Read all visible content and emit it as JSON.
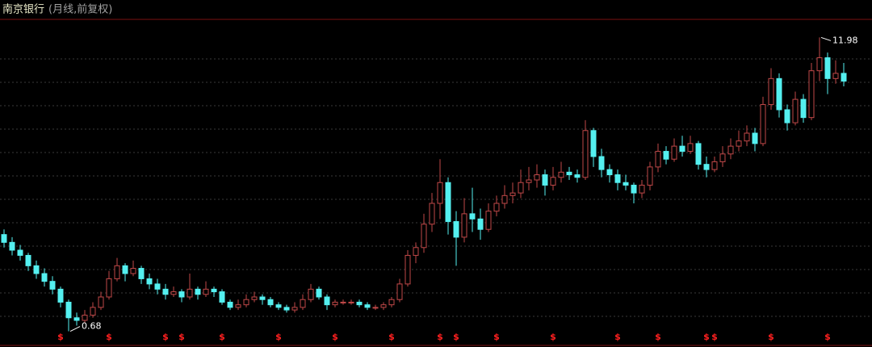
{
  "chart_data": {
    "type": "candlestick",
    "title": "南京银行",
    "subtitle": "(月线,前复权)",
    "open": [
      4.4,
      4.1,
      3.8,
      3.6,
      3.2,
      2.9,
      2.6,
      2.3,
      1.8,
      1.2,
      1.1,
      1.3,
      1.6,
      2.0,
      2.7,
      3.2,
      2.9,
      3.1,
      2.7,
      2.5,
      2.3,
      2.1,
      2.2,
      2.0,
      2.3,
      2.1,
      2.3,
      2.2,
      1.8,
      1.6,
      1.7,
      1.9,
      2.0,
      1.9,
      1.7,
      1.6,
      1.5,
      1.6,
      1.9,
      2.3,
      2.0,
      1.7,
      1.8,
      1.8,
      1.8,
      1.7,
      1.6,
      1.6,
      1.7,
      1.9,
      2.5,
      3.6,
      3.9,
      4.8,
      5.6,
      6.4,
      4.9,
      4.3,
      5.2,
      5.0,
      4.6,
      5.3,
      5.6,
      5.9,
      6.0,
      6.4,
      6.5,
      6.7,
      6.3,
      6.6,
      6.8,
      6.7,
      6.6,
      8.4,
      7.4,
      6.9,
      6.7,
      6.4,
      6.3,
      6.0,
      6.3,
      7.0,
      7.6,
      7.3,
      7.8,
      7.6,
      7.9,
      7.1,
      6.9,
      7.2,
      7.5,
      7.8,
      8.0,
      8.3,
      7.9,
      9.4,
      10.4,
      9.2,
      8.7,
      9.6,
      8.9,
      10.7,
      11.2,
      10.4,
      10.6
    ],
    "high": [
      4.6,
      4.3,
      4.0,
      3.7,
      3.4,
      3.1,
      2.8,
      2.4,
      1.9,
      1.4,
      1.5,
      1.8,
      2.2,
      3.0,
      3.5,
      3.3,
      3.4,
      3.2,
      2.9,
      2.7,
      2.5,
      2.4,
      2.3,
      2.9,
      2.4,
      2.6,
      2.4,
      2.3,
      1.9,
      1.9,
      2.1,
      2.2,
      2.1,
      2.0,
      1.8,
      1.7,
      1.8,
      2.1,
      2.5,
      2.4,
      2.1,
      1.9,
      1.9,
      1.9,
      1.9,
      1.8,
      1.7,
      1.8,
      2.0,
      2.7,
      3.8,
      4.1,
      5.2,
      6.0,
      7.3,
      6.6,
      5.3,
      5.8,
      6.2,
      5.4,
      5.6,
      5.9,
      6.3,
      6.4,
      6.9,
      7.0,
      7.1,
      6.9,
      7.0,
      7.2,
      7.0,
      6.9,
      8.8,
      8.5,
      7.7,
      7.1,
      6.9,
      6.7,
      6.4,
      6.5,
      7.2,
      7.9,
      7.8,
      8.1,
      8.2,
      8.2,
      8.0,
      7.4,
      7.4,
      7.8,
      8.1,
      8.4,
      8.6,
      8.5,
      9.7,
      10.8,
      10.6,
      9.4,
      9.9,
      9.8,
      11.0,
      11.98,
      11.4,
      11.1,
      11.0
    ],
    "low": [
      3.9,
      3.6,
      3.4,
      3.0,
      2.7,
      2.4,
      2.1,
      1.6,
      0.68,
      0.9,
      1.0,
      1.2,
      1.5,
      1.9,
      2.6,
      2.6,
      2.8,
      2.5,
      2.3,
      2.1,
      1.9,
      2.0,
      1.8,
      1.9,
      1.9,
      2.0,
      2.0,
      1.7,
      1.5,
      1.5,
      1.6,
      1.8,
      1.7,
      1.6,
      1.5,
      1.4,
      1.4,
      1.5,
      1.8,
      1.9,
      1.5,
      1.6,
      1.7,
      1.7,
      1.6,
      1.5,
      1.5,
      1.5,
      1.6,
      1.8,
      2.4,
      3.3,
      3.7,
      4.5,
      5.0,
      4.4,
      3.2,
      4.1,
      4.5,
      4.2,
      4.5,
      5.1,
      5.4,
      5.6,
      5.8,
      6.1,
      6.2,
      5.9,
      6.1,
      6.4,
      6.5,
      6.4,
      6.5,
      7.0,
      6.6,
      6.4,
      6.1,
      6.1,
      5.6,
      5.8,
      6.1,
      6.8,
      7.1,
      7.2,
      7.4,
      7.5,
      6.9,
      6.6,
      6.8,
      7.0,
      7.3,
      7.6,
      7.8,
      7.6,
      7.8,
      9.2,
      8.9,
      8.4,
      8.6,
      8.7,
      8.8,
      10.3,
      9.8,
      10.2,
      10.1
    ],
    "close": [
      4.1,
      3.8,
      3.6,
      3.2,
      2.9,
      2.6,
      2.3,
      1.8,
      1.2,
      1.1,
      1.3,
      1.6,
      2.0,
      2.7,
      3.2,
      2.9,
      3.1,
      2.7,
      2.5,
      2.3,
      2.1,
      2.2,
      2.0,
      2.3,
      2.1,
      2.3,
      2.2,
      1.8,
      1.6,
      1.7,
      1.9,
      2.0,
      1.9,
      1.7,
      1.6,
      1.5,
      1.6,
      1.9,
      2.3,
      2.0,
      1.7,
      1.8,
      1.8,
      1.8,
      1.7,
      1.6,
      1.6,
      1.7,
      1.9,
      2.5,
      3.6,
      3.9,
      4.8,
      5.6,
      6.4,
      4.9,
      4.3,
      5.2,
      5.0,
      4.6,
      5.3,
      5.6,
      5.9,
      6.0,
      6.4,
      6.5,
      6.7,
      6.3,
      6.6,
      6.8,
      6.7,
      6.6,
      8.4,
      7.4,
      6.9,
      6.7,
      6.4,
      6.3,
      6.0,
      6.3,
      7.0,
      7.6,
      7.3,
      7.8,
      7.6,
      7.9,
      7.1,
      6.9,
      7.2,
      7.5,
      7.8,
      8.0,
      8.3,
      7.9,
      9.4,
      10.4,
      9.2,
      8.7,
      9.6,
      8.9,
      10.7,
      11.2,
      10.4,
      10.6,
      10.3
    ],
    "up_color": "#c04848",
    "down_color": "#54f0f0",
    "ylim": [
      0.2,
      12.8
    ],
    "max_label_index": 101,
    "min_label_index": 8,
    "dividend_markers": {
      "symbol": "$",
      "at": [
        7,
        13,
        20,
        22,
        27,
        34,
        41,
        48,
        54,
        56,
        61,
        68,
        76,
        81,
        87,
        88,
        95,
        102
      ]
    }
  }
}
